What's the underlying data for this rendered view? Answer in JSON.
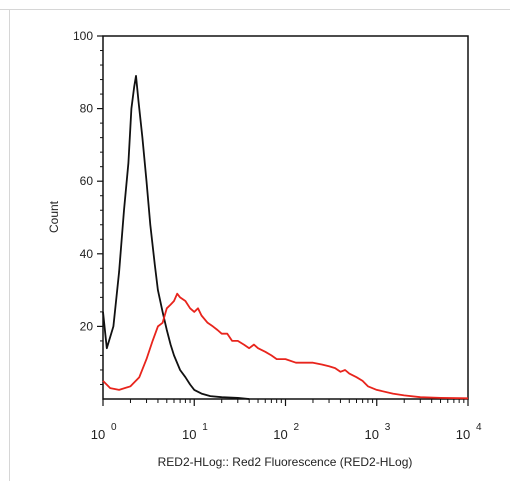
{
  "chart_data": {
    "type": "line",
    "x_scale": "log",
    "xlim": [
      1,
      10000
    ],
    "ylim": [
      0,
      100
    ],
    "xlabel": "RED2-HLog:: Red2 Fluorescence (RED2-HLog)",
    "ylabel": "Count",
    "x_ticks": [
      {
        "value": 1,
        "base": "10",
        "exp": "0"
      },
      {
        "value": 10,
        "base": "10",
        "exp": "1"
      },
      {
        "value": 100,
        "base": "10",
        "exp": "2"
      },
      {
        "value": 1000,
        "base": "10",
        "exp": "3"
      },
      {
        "value": 10000,
        "base": "10",
        "exp": "4"
      }
    ],
    "y_ticks": [
      {
        "value": 20,
        "label": "20"
      },
      {
        "value": 40,
        "label": "40"
      },
      {
        "value": 60,
        "label": "60"
      },
      {
        "value": 80,
        "label": "80"
      },
      {
        "value": 100,
        "label": "100"
      }
    ],
    "grid": false,
    "series": [
      {
        "color": "#111111",
        "points": [
          [
            1.0,
            24
          ],
          [
            1.1,
            14
          ],
          [
            1.3,
            20
          ],
          [
            1.5,
            35
          ],
          [
            1.7,
            52
          ],
          [
            1.9,
            65
          ],
          [
            2.05,
            80
          ],
          [
            2.2,
            86
          ],
          [
            2.3,
            89
          ],
          [
            2.45,
            82
          ],
          [
            2.7,
            72
          ],
          [
            3.0,
            60
          ],
          [
            3.3,
            48
          ],
          [
            3.7,
            37
          ],
          [
            4.0,
            30
          ],
          [
            4.5,
            24
          ],
          [
            5.0,
            19
          ],
          [
            5.5,
            15
          ],
          [
            6.0,
            12
          ],
          [
            7.0,
            8
          ],
          [
            8.0,
            6
          ],
          [
            9.0,
            4
          ],
          [
            10.0,
            2.5
          ],
          [
            12.0,
            1.5
          ],
          [
            15.0,
            0.8
          ],
          [
            20.0,
            0.5
          ],
          [
            30.0,
            0.3
          ],
          [
            40.0,
            0
          ]
        ]
      },
      {
        "color": "#e8241c",
        "points": [
          [
            1.0,
            5
          ],
          [
            1.2,
            3
          ],
          [
            1.5,
            2.5
          ],
          [
            2.0,
            3.5
          ],
          [
            2.5,
            6
          ],
          [
            3.0,
            11
          ],
          [
            3.5,
            16
          ],
          [
            4.0,
            20
          ],
          [
            4.5,
            21
          ],
          [
            5.0,
            25
          ],
          [
            5.5,
            26
          ],
          [
            6.0,
            27
          ],
          [
            6.5,
            29
          ],
          [
            7.0,
            28
          ],
          [
            8.0,
            27
          ],
          [
            9.0,
            25
          ],
          [
            10.0,
            24
          ],
          [
            11.0,
            25
          ],
          [
            12.0,
            23
          ],
          [
            14.0,
            21
          ],
          [
            16.0,
            20
          ],
          [
            18.0,
            19
          ],
          [
            20.0,
            18
          ],
          [
            23.0,
            18
          ],
          [
            26.0,
            16
          ],
          [
            30.0,
            16
          ],
          [
            35.0,
            15
          ],
          [
            40.0,
            14
          ],
          [
            45.0,
            15
          ],
          [
            50.0,
            14
          ],
          [
            60.0,
            13
          ],
          [
            70.0,
            12
          ],
          [
            80.0,
            11
          ],
          [
            100.0,
            11
          ],
          [
            130.0,
            10
          ],
          [
            160.0,
            10
          ],
          [
            200.0,
            10
          ],
          [
            250.0,
            9.5
          ],
          [
            300.0,
            9
          ],
          [
            350.0,
            8.5
          ],
          [
            400.0,
            7.5
          ],
          [
            450.0,
            8
          ],
          [
            500.0,
            7
          ],
          [
            600.0,
            6
          ],
          [
            700.0,
            5
          ],
          [
            800.0,
            3.5
          ],
          [
            1000.0,
            2.5
          ],
          [
            1500.0,
            1.5
          ],
          [
            2000.0,
            1
          ],
          [
            3000.0,
            0.5
          ],
          [
            5000.0,
            0.3
          ],
          [
            10000.0,
            0.2
          ]
        ]
      }
    ]
  }
}
